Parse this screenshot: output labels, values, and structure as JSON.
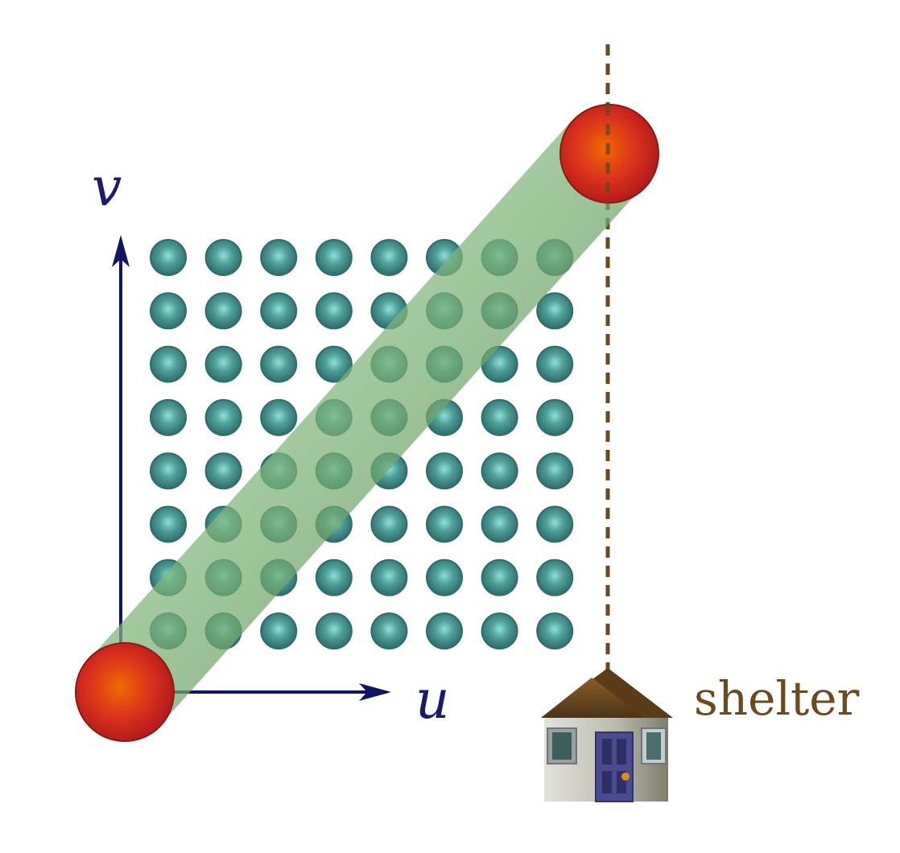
{
  "axes": {
    "x_label": "u",
    "y_label": "v"
  },
  "lattice": {
    "rows": 8,
    "cols": 8
  },
  "shelter": {
    "label": "shelter"
  },
  "colors": {
    "axis": "#141466",
    "lattice_dot": "#3f8f8c",
    "tube": "#6aa86a",
    "endpoint": "#d9321a",
    "guide_line": "#6b4a1e",
    "roof": "#6b4a1e",
    "wall": "#c9c9bf",
    "door": "#4a4a8e",
    "shelter_text": "#6b4a1e"
  },
  "icons": {
    "house": "house-icon",
    "start": "red-sphere",
    "end": "red-sphere"
  }
}
